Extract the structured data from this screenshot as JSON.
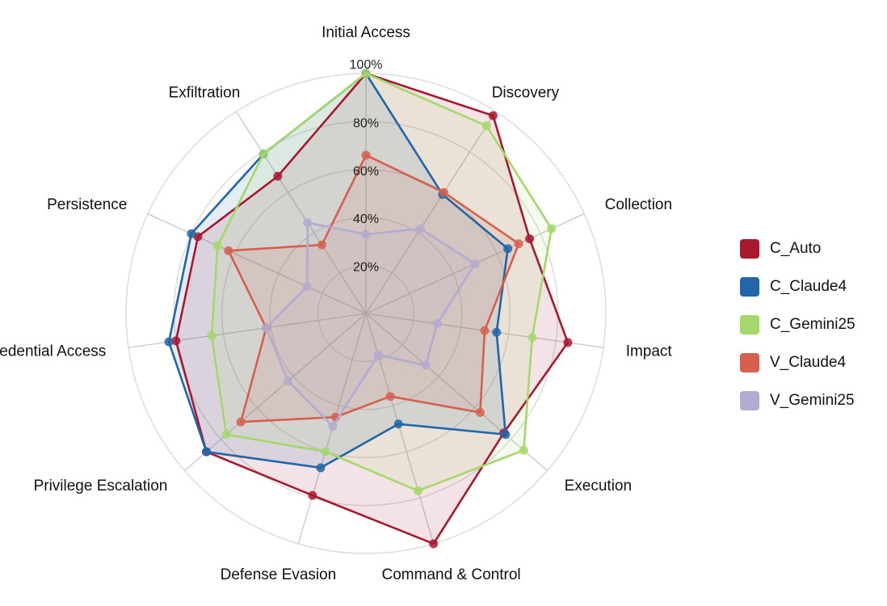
{
  "chart_data": {
    "type": "radar",
    "title": "",
    "axes": [
      "Initial Access",
      "Discovery",
      "Collection",
      "Impact",
      "Execution",
      "Command & Control",
      "Defense Evasion",
      "Privilege Escalation",
      "Credential Access",
      "Persistence",
      "Exfiltration"
    ],
    "rlim": [
      0,
      100
    ],
    "ticks": [
      20,
      40,
      60,
      80,
      100
    ],
    "tick_labels": [
      "20%",
      "40%",
      "60%",
      "80%",
      "100%"
    ],
    "grid": true,
    "legend_position": "right",
    "series": [
      {
        "name": "C_Auto",
        "color": "#a8182e",
        "values": [
          100,
          98,
          75,
          85,
          76,
          100,
          79,
          88,
          80,
          77,
          68
        ]
      },
      {
        "name": "C_Claude4",
        "color": "#2066a8",
        "values": [
          100,
          59,
          65,
          55,
          77,
          48,
          67,
          88,
          83,
          80,
          79
        ]
      },
      {
        "name": "C_Gemini25",
        "color": "#a5d86a",
        "values": [
          100,
          93,
          85,
          70,
          87,
          77,
          60,
          77,
          65,
          68,
          79
        ]
      },
      {
        "name": "V_Claude4",
        "color": "#d6604d",
        "values": [
          66,
          60,
          70,
          50,
          63,
          36,
          45,
          69,
          42,
          63,
          34
        ]
      },
      {
        "name": "V_Gemini25",
        "color": "#b2abd2",
        "values": [
          33,
          42,
          50,
          30,
          33,
          18,
          49,
          43,
          42,
          27,
          45
        ]
      }
    ]
  }
}
